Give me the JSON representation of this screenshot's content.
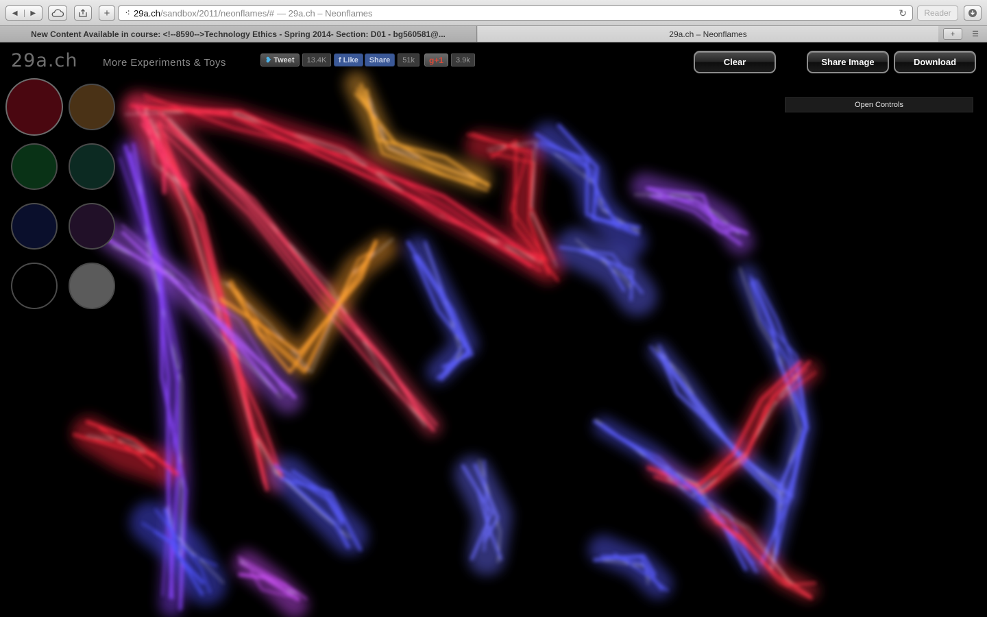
{
  "browser": {
    "url_host": "29a.ch",
    "url_path": "/sandbox/2011/neonflames/#",
    "url_title": "— 29a.ch – Neonflames",
    "reader_label": "Reader",
    "tabs": [
      {
        "label": "New Content Available in course: <!--8590-->Technology Ethics - Spring 2014- Section: D01 - bg560581@..."
      },
      {
        "label": "29a.ch – Neonflames"
      }
    ]
  },
  "header": {
    "logo": "29a.ch",
    "more_link": "More Experiments & Toys"
  },
  "social": {
    "tweet_label": "Tweet",
    "tweet_count": "13.4K",
    "like_label": "Like",
    "share_label": "Share",
    "fb_count": "51k",
    "gplus_label": "g+1",
    "gplus_count": "3.9k"
  },
  "actions": {
    "clear": "Clear",
    "share_image": "Share Image",
    "download": "Download",
    "open_controls": "Open Controls"
  },
  "palette": [
    {
      "name": "red",
      "color": "#4a0710",
      "selected": true
    },
    {
      "name": "brown",
      "color": "#4a3216",
      "selected": false
    },
    {
      "name": "green",
      "color": "#093216",
      "selected": false
    },
    {
      "name": "dark-teal",
      "color": "#0c2a22",
      "selected": false
    },
    {
      "name": "navy",
      "color": "#0a0f2c",
      "selected": false
    },
    {
      "name": "purple",
      "color": "#211028",
      "selected": false
    },
    {
      "name": "black",
      "color": "#000000",
      "selected": false
    },
    {
      "name": "gray",
      "color": "#5b5b5b",
      "selected": false
    }
  ]
}
